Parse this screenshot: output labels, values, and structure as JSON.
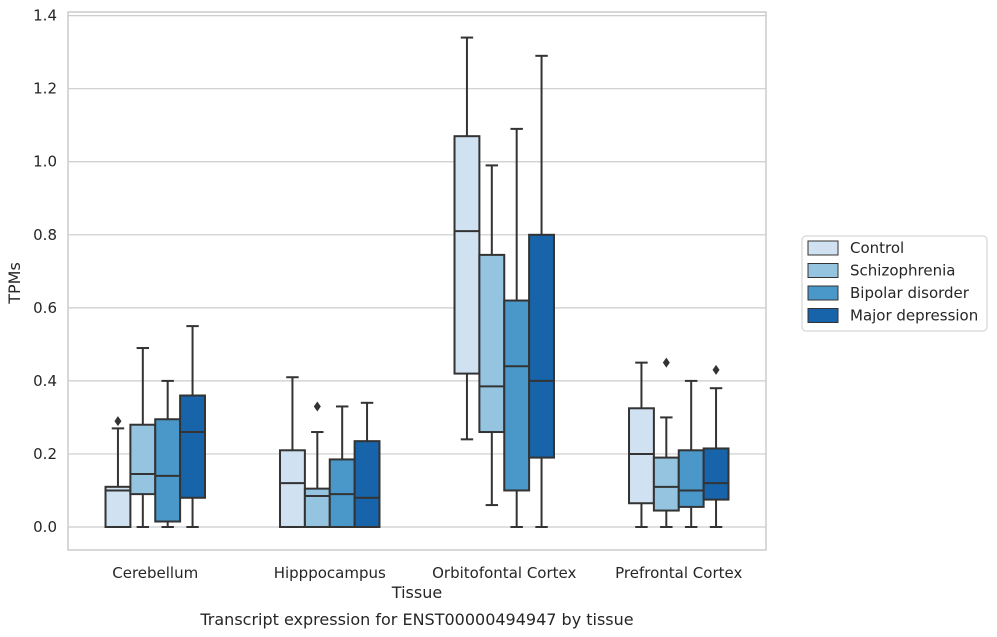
{
  "chart_data": {
    "type": "box",
    "caption": "Transcript expression for ENST00000494947 by tissue",
    "xlabel": "Tissue",
    "ylabel": "TPMs",
    "ylim": [
      -0.063,
      1.41
    ],
    "yticks": [
      0.0,
      0.2,
      0.4,
      0.6,
      0.8,
      1.0,
      1.2,
      1.4
    ],
    "ytick_labels": [
      "0.0",
      "0.2",
      "0.4",
      "0.6",
      "0.8",
      "1.0",
      "1.2",
      "1.4"
    ],
    "grid": "horizontal",
    "legend_position": "right",
    "categories": [
      "Cerebellum",
      "Hipppocampus",
      "Orbitofontal Cortex",
      "Prefrontal Cortex"
    ],
    "series": [
      {
        "name": "Control",
        "color": "#d0e1f2",
        "boxes": [
          {
            "whislo": 0.0,
            "q1": 0.0,
            "med": 0.1,
            "q3": 0.11,
            "whishi": 0.27,
            "fliers": [
              0.29
            ]
          },
          {
            "whislo": 0.0,
            "q1": 0.0,
            "med": 0.12,
            "q3": 0.21,
            "whishi": 0.41,
            "fliers": []
          },
          {
            "whislo": 0.24,
            "q1": 0.42,
            "med": 0.81,
            "q3": 1.07,
            "whishi": 1.34,
            "fliers": []
          },
          {
            "whislo": 0.0,
            "q1": 0.065,
            "med": 0.2,
            "q3": 0.325,
            "whishi": 0.45,
            "fliers": []
          }
        ]
      },
      {
        "name": "Schizophrenia",
        "color": "#94c4df",
        "boxes": [
          {
            "whislo": 0.0,
            "q1": 0.09,
            "med": 0.145,
            "q3": 0.28,
            "whishi": 0.49,
            "fliers": []
          },
          {
            "whislo": 0.0,
            "q1": 0.0,
            "med": 0.085,
            "q3": 0.105,
            "whishi": 0.26,
            "fliers": [
              0.33
            ]
          },
          {
            "whislo": 0.06,
            "q1": 0.26,
            "med": 0.385,
            "q3": 0.745,
            "whishi": 0.99,
            "fliers": []
          },
          {
            "whislo": 0.0,
            "q1": 0.045,
            "med": 0.11,
            "q3": 0.19,
            "whishi": 0.3,
            "fliers": [
              0.45
            ]
          }
        ]
      },
      {
        "name": "Bipolar disorder",
        "color": "#4a98c9",
        "boxes": [
          {
            "whislo": 0.0,
            "q1": 0.015,
            "med": 0.14,
            "q3": 0.295,
            "whishi": 0.4,
            "fliers": []
          },
          {
            "whislo": 0.0,
            "q1": 0.0,
            "med": 0.09,
            "q3": 0.185,
            "whishi": 0.33,
            "fliers": []
          },
          {
            "whislo": 0.0,
            "q1": 0.1,
            "med": 0.44,
            "q3": 0.62,
            "whishi": 1.09,
            "fliers": []
          },
          {
            "whislo": 0.0,
            "q1": 0.055,
            "med": 0.1,
            "q3": 0.21,
            "whishi": 0.4,
            "fliers": []
          }
        ]
      },
      {
        "name": "Major depression",
        "color": "#1764ab",
        "boxes": [
          {
            "whislo": 0.0,
            "q1": 0.08,
            "med": 0.26,
            "q3": 0.36,
            "whishi": 0.55,
            "fliers": []
          },
          {
            "whislo": 0.0,
            "q1": 0.0,
            "med": 0.08,
            "q3": 0.235,
            "whishi": 0.34,
            "fliers": []
          },
          {
            "whislo": 0.0,
            "q1": 0.19,
            "med": 0.4,
            "q3": 0.8,
            "whishi": 1.29,
            "fliers": []
          },
          {
            "whislo": 0.0,
            "q1": 0.075,
            "med": 0.12,
            "q3": 0.215,
            "whishi": 0.38,
            "fliers": [
              0.43
            ]
          }
        ]
      }
    ]
  }
}
